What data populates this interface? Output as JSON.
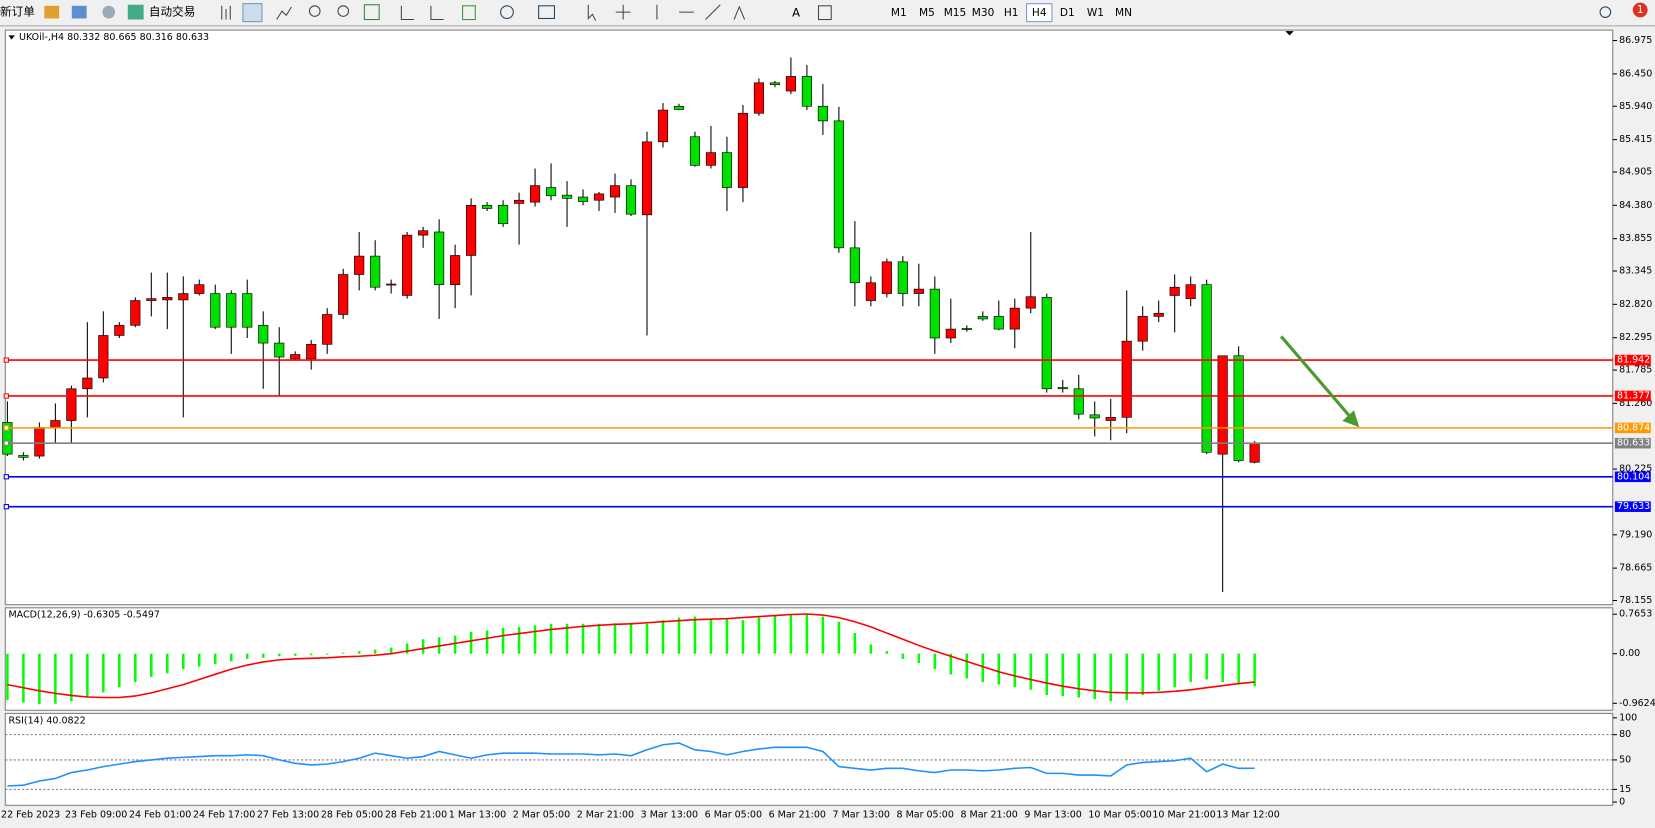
{
  "toolbar": {
    "new_order": "新订单",
    "auto_trading": "自动交易",
    "timeframes": [
      "M1",
      "M5",
      "M15",
      "M30",
      "H1",
      "H4",
      "D1",
      "W1",
      "MN"
    ],
    "active_timeframe": "H4",
    "notifications": 1
  },
  "chart_data": {
    "type": "candlestick",
    "title": "UKOil-,H4 80.332 80.665 80.316 80.633",
    "bull_color": "#ff0000",
    "bear_color": "#00e000",
    "categories": [
      "22 Feb 2023",
      null,
      null,
      null,
      "23 Feb 09:00",
      null,
      null,
      null,
      "24 Feb 01:00",
      null,
      null,
      null,
      "24 Feb 17:00",
      null,
      null,
      null,
      "27 Feb 13:00",
      null,
      null,
      null,
      "28 Feb 05:00",
      null,
      null,
      null,
      "28 Feb 21:00",
      null,
      null,
      null,
      "1 Mar 13:00",
      null,
      null,
      null,
      "2 Mar 05:00",
      null,
      null,
      null,
      "2 Mar 21:00",
      null,
      null,
      null,
      "3 Mar 13:00",
      null,
      null,
      null,
      "6 Mar 05:00",
      null,
      null,
      null,
      "6 Mar 21:00",
      null,
      null,
      null,
      "7 Mar 13:00",
      null,
      null,
      null,
      "8 Mar 05:00",
      null,
      null,
      null,
      "8 Mar 21:00",
      null,
      null,
      null,
      "9 Mar 13:00",
      null,
      null,
      null,
      "10 Mar 05:00",
      null,
      null,
      null,
      "10 Mar 21:00",
      null,
      null,
      null,
      "13 Mar 12:00",
      null,
      null
    ],
    "open": [
      80.96,
      80.44,
      80.43,
      80.88,
      80.99,
      81.49,
      81.66,
      82.33,
      82.49,
      82.88,
      82.89,
      82.89,
      82.99,
      82.99,
      82.99,
      82.99,
      82.49,
      82.21,
      81.96,
      81.96,
      82.19,
      82.66,
      83.29,
      83.58,
      83.13,
      82.96,
      83.91,
      83.96,
      83.13,
      83.59,
      84.38,
      84.38,
      84.41,
      84.43,
      84.66,
      84.54,
      84.51,
      84.46,
      84.51,
      84.69,
      84.23,
      85.38,
      85.94,
      85.46,
      85.01,
      85.21,
      84.66,
      85.83,
      86.31,
      86.18,
      86.41,
      85.94,
      85.71,
      83.71,
      82.88,
      82.99,
      83.49,
      82.99,
      83.06,
      82.29,
      82.44,
      82.63,
      82.63,
      82.43,
      82.76,
      82.93,
      81.51,
      81.49,
      81.08,
      80.99,
      81.04,
      82.24,
      82.63,
      82.96,
      82.91,
      83.13,
      80.46,
      82.01,
      80.332
    ],
    "high": [
      81.29,
      80.49,
      80.96,
      81.26,
      81.54,
      82.54,
      82.71,
      82.54,
      82.93,
      83.32,
      83.32,
      83.26,
      83.21,
      83.13,
      83.04,
      83.21,
      82.71,
      82.46,
      82.08,
      82.26,
      82.76,
      83.38,
      83.96,
      83.83,
      83.21,
      83.96,
      84.04,
      84.16,
      83.76,
      84.49,
      84.43,
      84.46,
      84.58,
      84.96,
      85.04,
      84.76,
      84.63,
      84.59,
      84.88,
      84.79,
      85.54,
      85.99,
      85.98,
      85.54,
      85.63,
      85.46,
      85.96,
      86.38,
      86.34,
      86.71,
      86.59,
      86.29,
      85.93,
      84.13,
      83.26,
      83.54,
      83.58,
      83.46,
      83.26,
      82.91,
      82.49,
      82.71,
      82.88,
      82.91,
      83.96,
      82.99,
      81.63,
      81.71,
      81.29,
      81.33,
      83.04,
      82.79,
      82.88,
      83.29,
      83.26,
      83.21,
      82.01,
      82.16,
      80.665
    ],
    "low": [
      80.43,
      80.36,
      80.39,
      80.63,
      80.63,
      81.04,
      81.59,
      82.29,
      82.46,
      82.63,
      82.43,
      81.04,
      82.96,
      82.43,
      82.04,
      82.29,
      81.49,
      81.38,
      81.93,
      81.79,
      82.04,
      82.59,
      83.04,
      83.04,
      82.99,
      82.91,
      83.71,
      82.59,
      82.76,
      82.96,
      84.29,
      84.04,
      83.76,
      84.36,
      84.46,
      84.04,
      84.38,
      84.29,
      84.26,
      84.21,
      82.33,
      85.29,
      85.88,
      84.99,
      84.96,
      84.29,
      84.43,
      85.79,
      86.24,
      86.13,
      85.88,
      85.49,
      83.63,
      82.79,
      82.79,
      82.93,
      82.79,
      82.79,
      82.04,
      82.21,
      82.39,
      82.56,
      82.41,
      82.13,
      82.68,
      81.43,
      81.43,
      81.01,
      80.74,
      80.68,
      80.79,
      82.09,
      82.54,
      82.38,
      82.79,
      80.46,
      78.29,
      80.33,
      80.316
    ],
    "close": [
      80.46,
      80.41,
      80.88,
      80.99,
      81.49,
      81.66,
      82.33,
      82.49,
      82.88,
      82.91,
      82.93,
      82.99,
      83.13,
      82.46,
      82.46,
      82.46,
      82.21,
      81.99,
      82.03,
      82.19,
      82.66,
      83.29,
      83.58,
      83.09,
      83.14,
      83.91,
      83.98,
      83.13,
      83.59,
      84.38,
      84.33,
      84.09,
      84.46,
      84.69,
      84.53,
      84.49,
      84.44,
      84.56,
      84.69,
      84.24,
      85.38,
      85.88,
      85.89,
      85.01,
      85.21,
      84.66,
      85.83,
      86.31,
      86.28,
      86.41,
      85.94,
      85.71,
      83.71,
      83.16,
      83.16,
      83.49,
      82.99,
      83.06,
      82.29,
      82.43,
      82.43,
      82.59,
      82.43,
      82.76,
      82.94,
      81.49,
      81.49,
      81.09,
      81.03,
      81.04,
      82.24,
      82.63,
      82.68,
      83.09,
      83.13,
      80.49,
      82.01,
      80.36,
      80.633
    ],
    "ylim": [
      78.09,
      87.14
    ],
    "yticks": [
      86.975,
      {
        "value": 86.45,
        "label": "86.450"
      },
      {
        "value": 85.94,
        "label": "85.940"
      },
      85.415,
      84.905,
      {
        "value": 84.38,
        "label": "84.380"
      },
      83.855,
      83.345,
      {
        "value": 82.82,
        "label": "82.820"
      },
      82.295,
      81.785,
      {
        "value": 81.26,
        "label": "81.260"
      },
      80.225,
      {
        "value": 79.19,
        "label": "79.190"
      },
      78.665,
      78.155
    ],
    "levels": [
      {
        "value": 81.942,
        "color": "#ff0000"
      },
      {
        "value": 81.377,
        "color": "#ff0000"
      },
      {
        "value": 80.874,
        "color": "#ff9900"
      },
      {
        "value": 80.633,
        "color": "#808080"
      },
      {
        "value": 80.104,
        "color": "#0000ff"
      },
      {
        "value": 79.633,
        "color": "#0000ff"
      }
    ],
    "macd": {
      "label": "MACD(12,26,9) -0.6305 -0.5497",
      "ylim": [
        -1.097,
        0.89
      ],
      "yticks": [
        0.7653,
        {
          "value": 0,
          "label": "0.00"
        },
        -0.9624
      ],
      "hist_color": "#00ff00",
      "signal_color": "#ff0000",
      "histogram": [
        -0.9,
        -0.95,
        -0.98,
        -0.97,
        -0.92,
        -0.85,
        -0.75,
        -0.65,
        -0.55,
        -0.45,
        -0.38,
        -0.3,
        -0.25,
        -0.2,
        -0.15,
        -0.1,
        -0.08,
        -0.05,
        -0.04,
        -0.03,
        -0.02,
        0.02,
        0.05,
        0.08,
        0.12,
        0.2,
        0.28,
        0.32,
        0.35,
        0.42,
        0.45,
        0.5,
        0.52,
        0.55,
        0.58,
        0.58,
        0.58,
        0.58,
        0.59,
        0.6,
        0.58,
        0.65,
        0.7,
        0.72,
        0.68,
        0.68,
        0.65,
        0.7,
        0.75,
        0.76,
        0.77,
        0.72,
        0.62,
        0.4,
        0.18,
        0.05,
        -0.1,
        -0.18,
        -0.3,
        -0.4,
        -0.48,
        -0.55,
        -0.6,
        -0.65,
        -0.7,
        -0.8,
        -0.82,
        -0.85,
        -0.88,
        -0.92,
        -0.9,
        -0.8,
        -0.72,
        -0.65,
        -0.55,
        -0.5,
        -0.55,
        -0.6,
        -0.6305
      ],
      "signal": [
        -0.6,
        -0.66,
        -0.72,
        -0.77,
        -0.81,
        -0.84,
        -0.85,
        -0.85,
        -0.82,
        -0.76,
        -0.68,
        -0.6,
        -0.5,
        -0.4,
        -0.3,
        -0.22,
        -0.16,
        -0.12,
        -0.1,
        -0.09,
        -0.08,
        -0.06,
        -0.05,
        -0.03,
        0,
        0.05,
        0.1,
        0.15,
        0.2,
        0.25,
        0.3,
        0.35,
        0.39,
        0.43,
        0.47,
        0.5,
        0.53,
        0.55,
        0.57,
        0.58,
        0.6,
        0.62,
        0.64,
        0.66,
        0.67,
        0.68,
        0.7,
        0.72,
        0.74,
        0.76,
        0.77,
        0.75,
        0.7,
        0.62,
        0.52,
        0.4,
        0.28,
        0.16,
        0.05,
        -0.05,
        -0.15,
        -0.25,
        -0.35,
        -0.43,
        -0.5,
        -0.57,
        -0.63,
        -0.68,
        -0.72,
        -0.75,
        -0.76,
        -0.76,
        -0.75,
        -0.73,
        -0.7,
        -0.66,
        -0.62,
        -0.58,
        -0.5497
      ]
    },
    "rsi": {
      "label": "RSI(14) 40.0822",
      "ylim": [
        -3.9,
        105.2
      ],
      "yticks": [
        100,
        80,
        50,
        15,
        0
      ],
      "color": "#1e90ff",
      "values": [
        19,
        20,
        25,
        28,
        35,
        38,
        42,
        45,
        48,
        50,
        52,
        53,
        54,
        55,
        55,
        56,
        55,
        50,
        46,
        44,
        45,
        48,
        52,
        58,
        55,
        52,
        54,
        60,
        56,
        52,
        56,
        58,
        58,
        58,
        57,
        57,
        57,
        56,
        57,
        55,
        62,
        68,
        70,
        62,
        60,
        56,
        60,
        63,
        65,
        65,
        65,
        60,
        42,
        40,
        38,
        40,
        40,
        37,
        35,
        38,
        38,
        37,
        38,
        40,
        41,
        34,
        34,
        32,
        32,
        31,
        44,
        47,
        48,
        49,
        52,
        36,
        45,
        40,
        40.0822
      ]
    }
  }
}
